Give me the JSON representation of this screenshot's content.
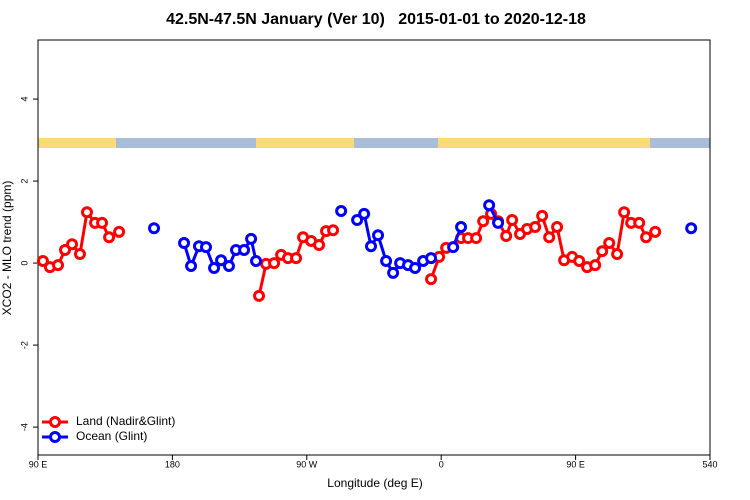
{
  "chart_data": {
    "type": "line",
    "title": "42.5N-47.5N January (Ver 10)   2015-01-01 to 2020-12-18",
    "x_label": "Longitude (deg E)",
    "y_label": "XCO2 - MLO trend (ppm)",
    "xlim": [
      90,
      540
    ],
    "xticks": [
      {
        "value": 90,
        "label": "90 E"
      },
      180,
      {
        "value": 270,
        "label": "90 W"
      },
      {
        "value": 360,
        "label": "0"
      },
      {
        "value": 450,
        "label": "90 E"
      },
      540
    ],
    "ylim": [
      -4.68,
      5.44
    ],
    "yticks": [
      -4,
      -2,
      0,
      2,
      4
    ],
    "legend": "bottom-left",
    "series": [
      {
        "name": "Land (Nadir&Glint)",
        "color": "#ff0000",
        "x": [
          93.3,
          98.0,
          103.4,
          108.1,
          112.8,
          118.1,
          122.8,
          128.2,
          132.9,
          137.6,
          144.3,
          null,
          238.0,
          242.7,
          248.1,
          252.8,
          257.4,
          262.8,
          267.5,
          272.9,
          278.2,
          282.9,
          287.6,
          null,
          353.2,
          358.6,
          363.3,
          373.3,
          378.0,
          383.4,
          388.1,
          393.4,
          398.1,
          403.5,
          407.5,
          412.8,
          417.5,
          422.9,
          427.6,
          432.3,
          437.6,
          442.3,
          447.7,
          452.4,
          457.7,
          463.1,
          467.8,
          472.5,
          477.8,
          482.5,
          487.2,
          492.6,
          497.2,
          503.3
        ],
        "values": [
          0.05,
          -0.1,
          -0.05,
          0.32,
          0.46,
          0.22,
          1.24,
          0.98,
          0.98,
          0.63,
          0.76,
          null,
          -0.8,
          -0.02,
          0.0,
          0.2,
          0.12,
          0.12,
          0.63,
          0.54,
          0.44,
          0.78,
          0.8,
          null,
          -0.39,
          0.15,
          0.37,
          0.61,
          0.61,
          0.61,
          1.02,
          1.2,
          1.02,
          0.66,
          1.05,
          0.71,
          0.83,
          0.88,
          1.15,
          0.63,
          0.88,
          0.07,
          0.15,
          0.05,
          -0.1,
          -0.05,
          0.29,
          0.49,
          0.22,
          1.24,
          0.98,
          0.98,
          0.63,
          0.76
        ]
      },
      {
        "name": "Ocean (Glint)",
        "color": "#0000ff",
        "x": [
          167.7,
          null,
          187.8,
          192.5,
          197.8,
          202.5,
          207.9,
          212.6,
          217.9,
          222.6,
          228.0,
          232.7,
          236.0,
          null,
          293.0,
          null,
          303.7,
          308.4,
          313.0,
          317.7,
          323.1,
          327.8,
          332.5,
          337.8,
          342.5,
          347.9,
          353.2,
          null,
          368.0,
          373.3,
          null,
          392.1,
          398.1,
          null,
          527.4
        ],
        "values": [
          0.85,
          null,
          0.49,
          -0.07,
          0.41,
          0.39,
          -0.12,
          0.07,
          -0.07,
          0.32,
          0.32,
          0.59,
          0.05,
          null,
          1.27,
          null,
          1.05,
          1.2,
          0.41,
          0.68,
          0.05,
          -0.24,
          0.0,
          -0.05,
          -0.12,
          0.05,
          0.12,
          null,
          0.39,
          0.88,
          null,
          1.41,
          0.98,
          null,
          0.85
        ]
      }
    ]
  }
}
